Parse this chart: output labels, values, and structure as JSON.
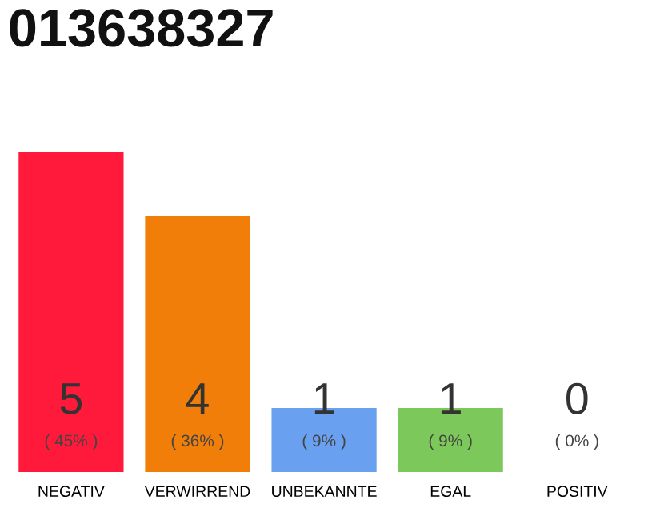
{
  "chart_data": {
    "type": "bar",
    "title": "013638327",
    "categories": [
      "NEGATIV",
      "VERWIRREND",
      "UNBEKANNTE",
      "EGAL",
      "POSITIV"
    ],
    "values": [
      5,
      4,
      1,
      1,
      0
    ],
    "colors": [
      "#ff1a3c",
      "#f27e0a",
      "#6aa0f0",
      "#7cc85a",
      "#9e9e9e"
    ],
    "data_labels": true,
    "annotations": [
      {
        "text": "( 45% )",
        "x": "NEGATIV",
        "y": 0
      },
      {
        "text": "( 36% )",
        "x": "VERWIRREND",
        "y": 0
      },
      {
        "text": "( 9% )",
        "x": "UNBEKANNTE",
        "y": 0
      },
      {
        "text": "( 9% )",
        "x": "EGAL",
        "y": 0
      },
      {
        "text": "( 0% )",
        "x": "POSITIV",
        "y": 0
      }
    ],
    "grid": false,
    "legend": false
  }
}
